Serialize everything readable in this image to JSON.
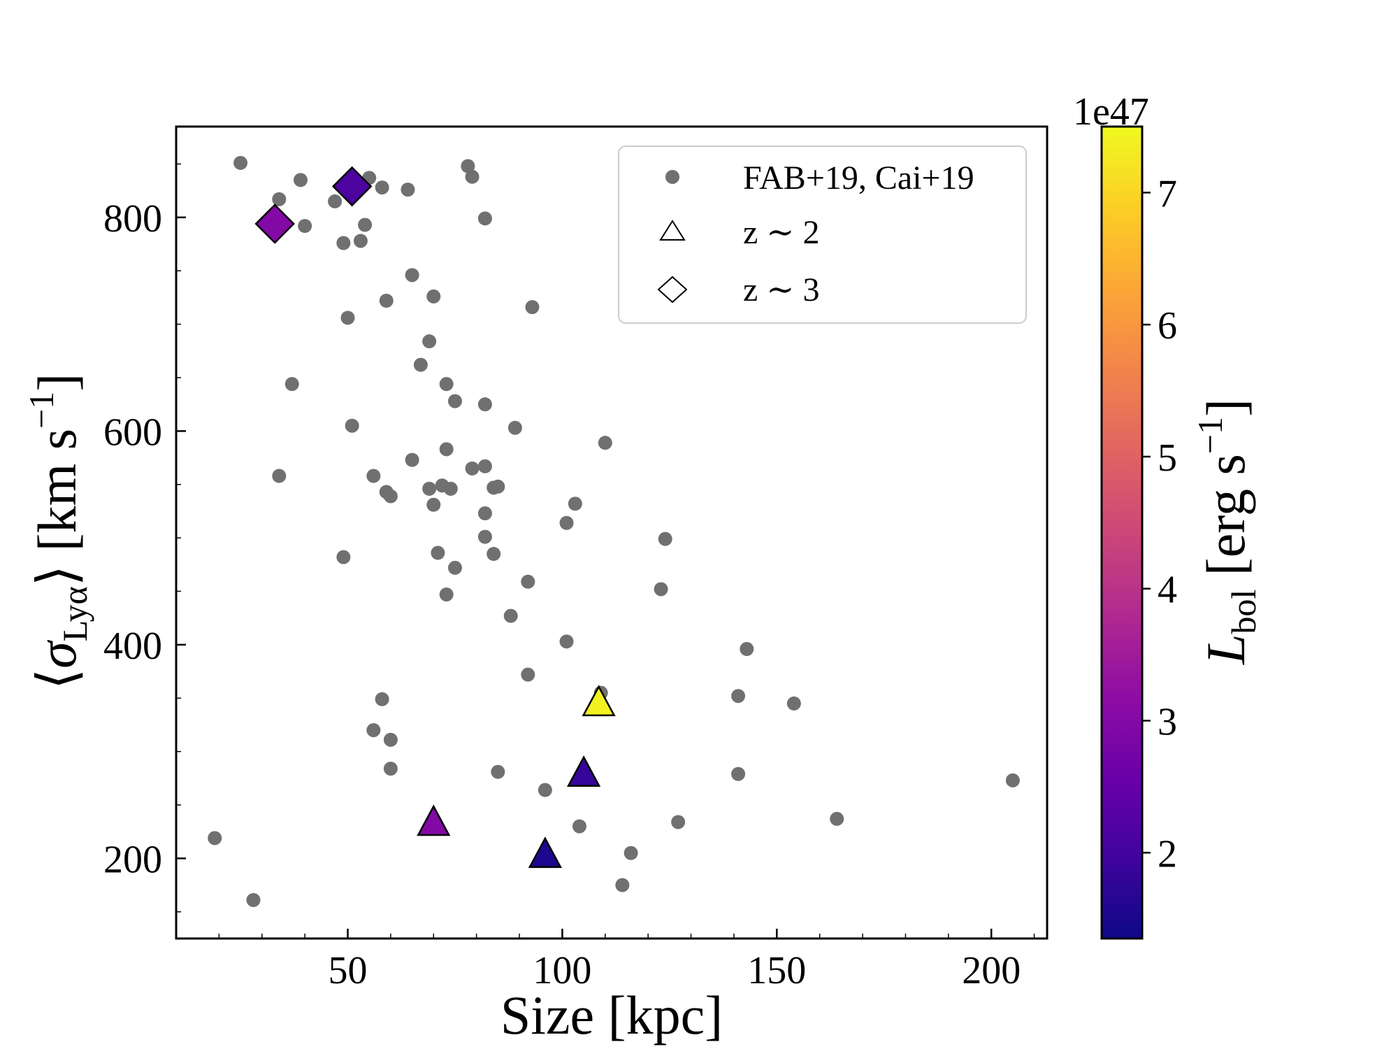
{
  "chart_data": {
    "type": "scatter",
    "title": "",
    "xlabel": "Size [kpc]",
    "ylabel_parts": [
      "⟨",
      "σ",
      "Lyα",
      "⟩ [km s",
      "−1",
      "]"
    ],
    "xlim": [
      10,
      213
    ],
    "ylim": [
      125,
      885
    ],
    "xticks": [
      50,
      100,
      150,
      200
    ],
    "xtick_labels": [
      "50",
      "100",
      "150",
      "200"
    ],
    "yticks": [
      200,
      400,
      600,
      800
    ],
    "ytick_labels": [
      "200",
      "400",
      "600",
      "800"
    ],
    "legend": {
      "location": "top-right",
      "entries": [
        {
          "label": "FAB+19, Cai+19",
          "marker": "circle"
        },
        {
          "label": "z ∼ 2",
          "marker": "triangle"
        },
        {
          "label": "z ∼ 3",
          "marker": "diamond"
        }
      ]
    },
    "colorbar": {
      "label_parts": [
        "L",
        "bol",
        " [erg s",
        "−1",
        "]"
      ],
      "offset_label": "1e47",
      "range": [
        1.35,
        7.5
      ],
      "ticks": [
        2,
        3,
        4,
        5,
        6,
        7
      ],
      "tick_labels": [
        "2",
        "3",
        "4",
        "5",
        "6",
        "7"
      ],
      "colormap": "plasma"
    },
    "series": [
      {
        "name": "FAB+19, Cai+19",
        "marker": "circle",
        "color": "#707070",
        "points": [
          [
            25,
            851
          ],
          [
            34,
            817
          ],
          [
            39,
            835
          ],
          [
            35,
            794
          ],
          [
            40,
            792
          ],
          [
            47,
            815
          ],
          [
            49,
            776
          ],
          [
            53,
            778
          ],
          [
            55,
            837
          ],
          [
            54,
            793
          ],
          [
            58,
            828
          ],
          [
            64,
            826
          ],
          [
            78,
            848
          ],
          [
            79,
            838
          ],
          [
            82,
            799
          ],
          [
            65,
            746
          ],
          [
            70,
            726
          ],
          [
            59,
            722
          ],
          [
            93,
            716
          ],
          [
            50,
            706
          ],
          [
            69,
            684
          ],
          [
            67,
            662
          ],
          [
            37,
            644
          ],
          [
            73,
            644
          ],
          [
            75,
            628
          ],
          [
            82,
            625
          ],
          [
            51,
            605
          ],
          [
            89,
            603
          ],
          [
            110,
            589
          ],
          [
            73,
            583
          ],
          [
            65,
            573
          ],
          [
            82,
            567
          ],
          [
            34,
            558
          ],
          [
            56,
            558
          ],
          [
            79,
            565
          ],
          [
            69,
            546
          ],
          [
            74,
            546
          ],
          [
            72,
            549
          ],
          [
            84,
            547
          ],
          [
            85,
            548
          ],
          [
            59,
            543
          ],
          [
            60,
            539
          ],
          [
            103,
            532
          ],
          [
            70,
            531
          ],
          [
            82,
            523
          ],
          [
            101,
            514
          ],
          [
            82,
            501
          ],
          [
            124,
            499
          ],
          [
            49,
            482
          ],
          [
            71,
            486
          ],
          [
            84,
            485
          ],
          [
            75,
            472
          ],
          [
            92,
            459
          ],
          [
            123,
            452
          ],
          [
            73,
            447
          ],
          [
            88,
            427
          ],
          [
            101,
            403
          ],
          [
            143,
            396
          ],
          [
            92,
            372
          ],
          [
            58,
            349
          ],
          [
            109,
            355
          ],
          [
            141,
            352
          ],
          [
            154,
            345
          ],
          [
            56,
            320
          ],
          [
            60,
            311
          ],
          [
            60,
            284
          ],
          [
            85,
            281
          ],
          [
            141,
            279
          ],
          [
            96,
            264
          ],
          [
            205,
            273
          ],
          [
            164,
            237
          ],
          [
            127,
            234
          ],
          [
            104,
            230
          ],
          [
            19,
            219
          ],
          [
            116,
            205
          ],
          [
            114,
            175
          ],
          [
            28,
            161
          ]
        ]
      },
      {
        "name": "z ∼ 2",
        "marker": "triangle",
        "points": [
          {
            "x": 108.5,
            "y": 345,
            "L": 7.4
          },
          {
            "x": 105,
            "y": 279,
            "L": 1.85
          },
          {
            "x": 70,
            "y": 233,
            "L": 3.0
          },
          {
            "x": 96,
            "y": 203,
            "L": 1.55
          }
        ]
      },
      {
        "name": "z ∼ 3",
        "marker": "diamond",
        "points": [
          {
            "x": 33,
            "y": 794,
            "L": 3.0
          },
          {
            "x": 51,
            "y": 829,
            "L": 2.15
          }
        ]
      }
    ]
  }
}
